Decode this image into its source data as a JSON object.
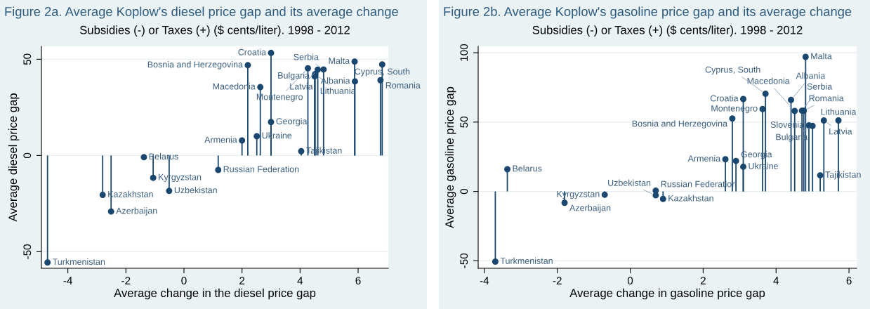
{
  "chart_data": [
    {
      "type": "lollipop",
      "title": "Figure 2a. Average Koplow's diesel price gap and its average change",
      "subtitle": "Subsidies (-) or Taxes (+) ($ cents/liter). 1998 - 2012",
      "xlabel": "Average change in the diesel price gap",
      "ylabel": "Average diesel price gap",
      "color": "#1a476f",
      "marker": "circle",
      "grid": "y",
      "x": [
        -4.7,
        -2.8,
        -2.51,
        -1.38,
        -1.06,
        -0.51,
        1.18,
        2.0,
        2.2,
        2.51,
        2.63,
        3.0,
        3.0,
        4.04,
        4.27,
        4.5,
        4.52,
        4.61,
        4.81,
        5.88,
        5.89,
        6.77,
        6.83
      ],
      "values": [
        -55.6,
        -20.5,
        -29.1,
        -0.9,
        -11.6,
        -18.4,
        -7.5,
        7.8,
        46.9,
        10.0,
        35.5,
        53.3,
        17.4,
        2.2,
        45.3,
        41.2,
        42.3,
        44.6,
        44.7,
        48.8,
        38.5,
        39.1,
        47.3
      ],
      "annotations": [
        {
          "text": "Turkmenistan",
          "x": -4.7,
          "y": -55.6
        },
        {
          "text": "Kazakhstan",
          "x": -2.8,
          "y": -20.5
        },
        {
          "text": "Azerbaijan",
          "x": -2.51,
          "y": -29.1
        },
        {
          "text": "Belarus",
          "x": -1.38,
          "y": -0.9
        },
        {
          "text": "Kyrgyzstan",
          "x": -1.06,
          "y": -11.6
        },
        {
          "text": "Uzbekistan",
          "x": -0.51,
          "y": -18.4
        },
        {
          "text": "Russian Federation",
          "x": 1.18,
          "y": -7.5
        },
        {
          "text": "Armenia",
          "x": 2.0,
          "y": 7.8
        },
        {
          "text": "Bosnia and Herzegovina",
          "x": 2.2,
          "y": 46.9
        },
        {
          "text": "Ukraine",
          "x": 2.51,
          "y": 10.0
        },
        {
          "text": "Macedonia",
          "x": 2.63,
          "y": 35.5
        },
        {
          "text": "Croatia",
          "x": 3.0,
          "y": 53.3
        },
        {
          "text": "Georgia",
          "x": 3.0,
          "y": 17.4
        },
        {
          "text": "Tajikistan",
          "x": 4.04,
          "y": 2.2
        },
        {
          "text": "Montenegro",
          "x": 4.27,
          "y": 45.3
        },
        {
          "text": "Bulgaria",
          "x": 4.5,
          "y": 41.2
        },
        {
          "text": "Lithuania",
          "x": 4.52,
          "y": 42.3
        },
        {
          "text": "Latvia",
          "x": 4.61,
          "y": 44.6
        },
        {
          "text": "Serbia",
          "x": 4.81,
          "y": 44.7
        },
        {
          "text": "Malta",
          "x": 5.88,
          "y": 48.8
        },
        {
          "text": "Albania",
          "x": 5.89,
          "y": 38.5
        },
        {
          "text": "Romania",
          "x": 6.77,
          "y": 39.1
        },
        {
          "text": "Cyprus, South",
          "x": 6.83,
          "y": 47.3
        }
      ],
      "xlim": [
        -4.91,
        7.04
      ],
      "ylim": [
        -58.6,
        56.7
      ],
      "xticks": [
        -4,
        -2,
        0,
        2,
        4,
        6
      ],
      "yticks": [
        -50,
        0,
        50
      ]
    },
    {
      "type": "lollipop",
      "title": "Figure 2b. Average Koplow's gasoline price gap and its average change",
      "subtitle": "Subsidies (-) or Taxes (+) ($ cents/liter). 1998 - 2012",
      "xlabel": "Average change in gasoline price gap",
      "ylabel": "Average gasoline price gap",
      "color": "#1a476f",
      "marker": "circle",
      "grid": "y",
      "x": [
        -3.7,
        -3.37,
        -1.8,
        -0.7,
        0.7,
        0.7,
        0.9,
        2.61,
        2.8,
        2.9,
        3.1,
        3.1,
        3.63,
        3.71,
        4.41,
        4.51,
        4.71,
        4.76,
        4.81,
        4.9,
        5.0,
        5.21,
        5.31,
        5.71
      ],
      "values": [
        -50.6,
        16.0,
        -8.2,
        -2.4,
        0.6,
        -2.8,
        -5.4,
        23.2,
        52.6,
        22.0,
        66.6,
        17.8,
        59.4,
        70.4,
        66.0,
        58.0,
        58.2,
        58.2,
        97.0,
        47.6,
        47.2,
        11.6,
        51.2,
        51.2
      ],
      "annotations": [
        {
          "text": "Turkmenistan",
          "x": -3.7,
          "y": -50.6
        },
        {
          "text": "Belarus",
          "x": -3.37,
          "y": 16.0
        },
        {
          "text": "Azerbaijan",
          "x": -1.8,
          "y": -8.2
        },
        {
          "text": "Kyrgyzstan",
          "x": -0.7,
          "y": -2.4
        },
        {
          "text": "Russian Federation",
          "x": 0.7,
          "y": 0.6
        },
        {
          "text": "Uzbekistan",
          "x": 0.7,
          "y": -2.8
        },
        {
          "text": "Kazakhstan",
          "x": 0.9,
          "y": -5.4
        },
        {
          "text": "Armenia",
          "x": 2.61,
          "y": 23.2
        },
        {
          "text": "Bosnia and Herzegovina",
          "x": 2.8,
          "y": 52.6
        },
        {
          "text": "Georgia",
          "x": 2.9,
          "y": 22.0
        },
        {
          "text": "Croatia",
          "x": 3.1,
          "y": 66.6
        },
        {
          "text": "Ukraine",
          "x": 3.1,
          "y": 17.8
        },
        {
          "text": "Montenegro",
          "x": 3.63,
          "y": 59.4
        },
        {
          "text": "Cyprus, South",
          "x": 3.71,
          "y": 70.4
        },
        {
          "text": "Albania",
          "x": 4.41,
          "y": 66.0
        },
        {
          "text": "Macedonia",
          "x": 4.51,
          "y": 58.0
        },
        {
          "text": "Serbia",
          "x": 4.71,
          "y": 58.2
        },
        {
          "text": "Romania",
          "x": 4.76,
          "y": 58.2
        },
        {
          "text": "Malta",
          "x": 4.81,
          "y": 97.0
        },
        {
          "text": "Slovenia",
          "x": 4.9,
          "y": 47.6
        },
        {
          "text": "Bulgaria",
          "x": 5.0,
          "y": 47.2
        },
        {
          "text": "Tajikistan",
          "x": 5.21,
          "y": 11.6
        },
        {
          "text": "Latvia",
          "x": 5.31,
          "y": 51.2
        },
        {
          "text": "Lithuania",
          "x": 5.71,
          "y": 51.2
        }
      ],
      "xlim": [
        -4.17,
        6.21
      ],
      "ylim": [
        -55.4,
        104.6
      ],
      "xticks": [
        -4,
        -2,
        0,
        2,
        4,
        6
      ],
      "yticks": [
        -50,
        0,
        50,
        100
      ]
    }
  ]
}
